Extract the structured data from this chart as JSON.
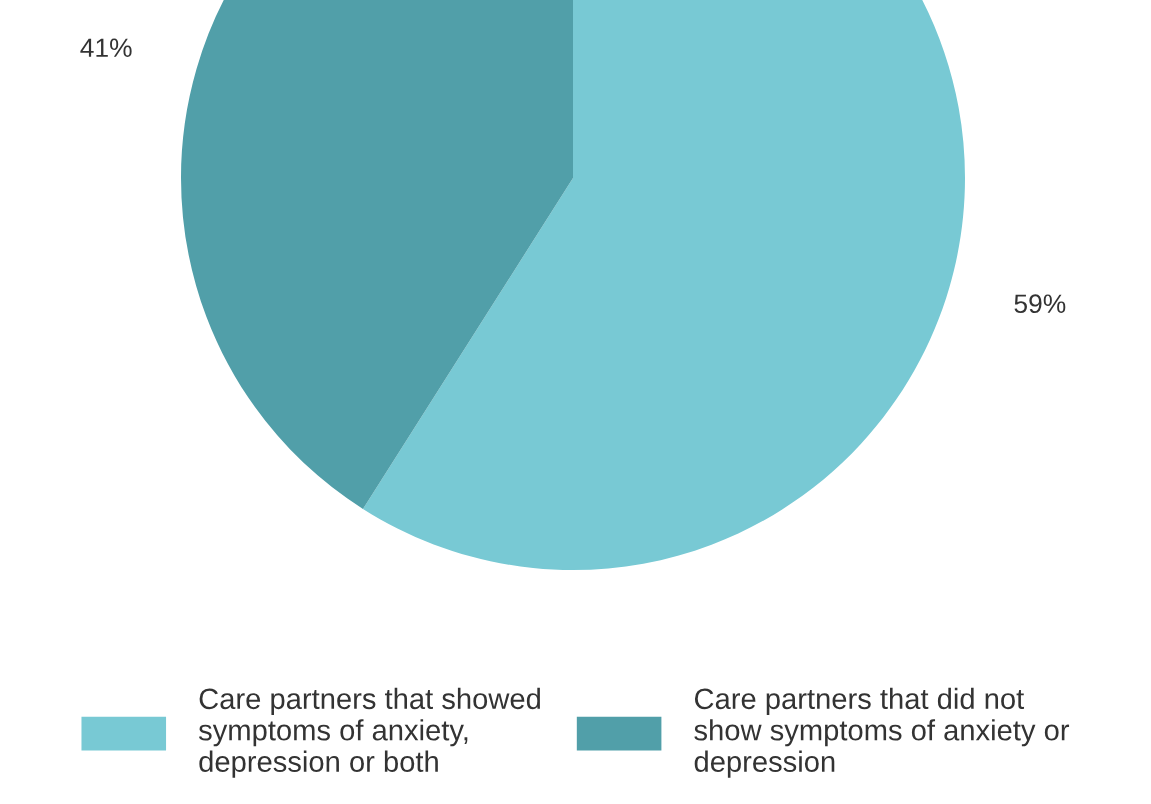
{
  "chart_data": {
    "type": "pie",
    "categories": [
      "Care partners that showed\nsymptoms of anxiety,\ndepression or both",
      "Care partners that did not\nshow symptoms of anxiety or\ndepression"
    ],
    "values": [
      59,
      41
    ],
    "colors": [
      "#78c9d4",
      "#519fa9"
    ],
    "value_labels": [
      "59%",
      "41%"
    ],
    "legend": "bottom"
  }
}
